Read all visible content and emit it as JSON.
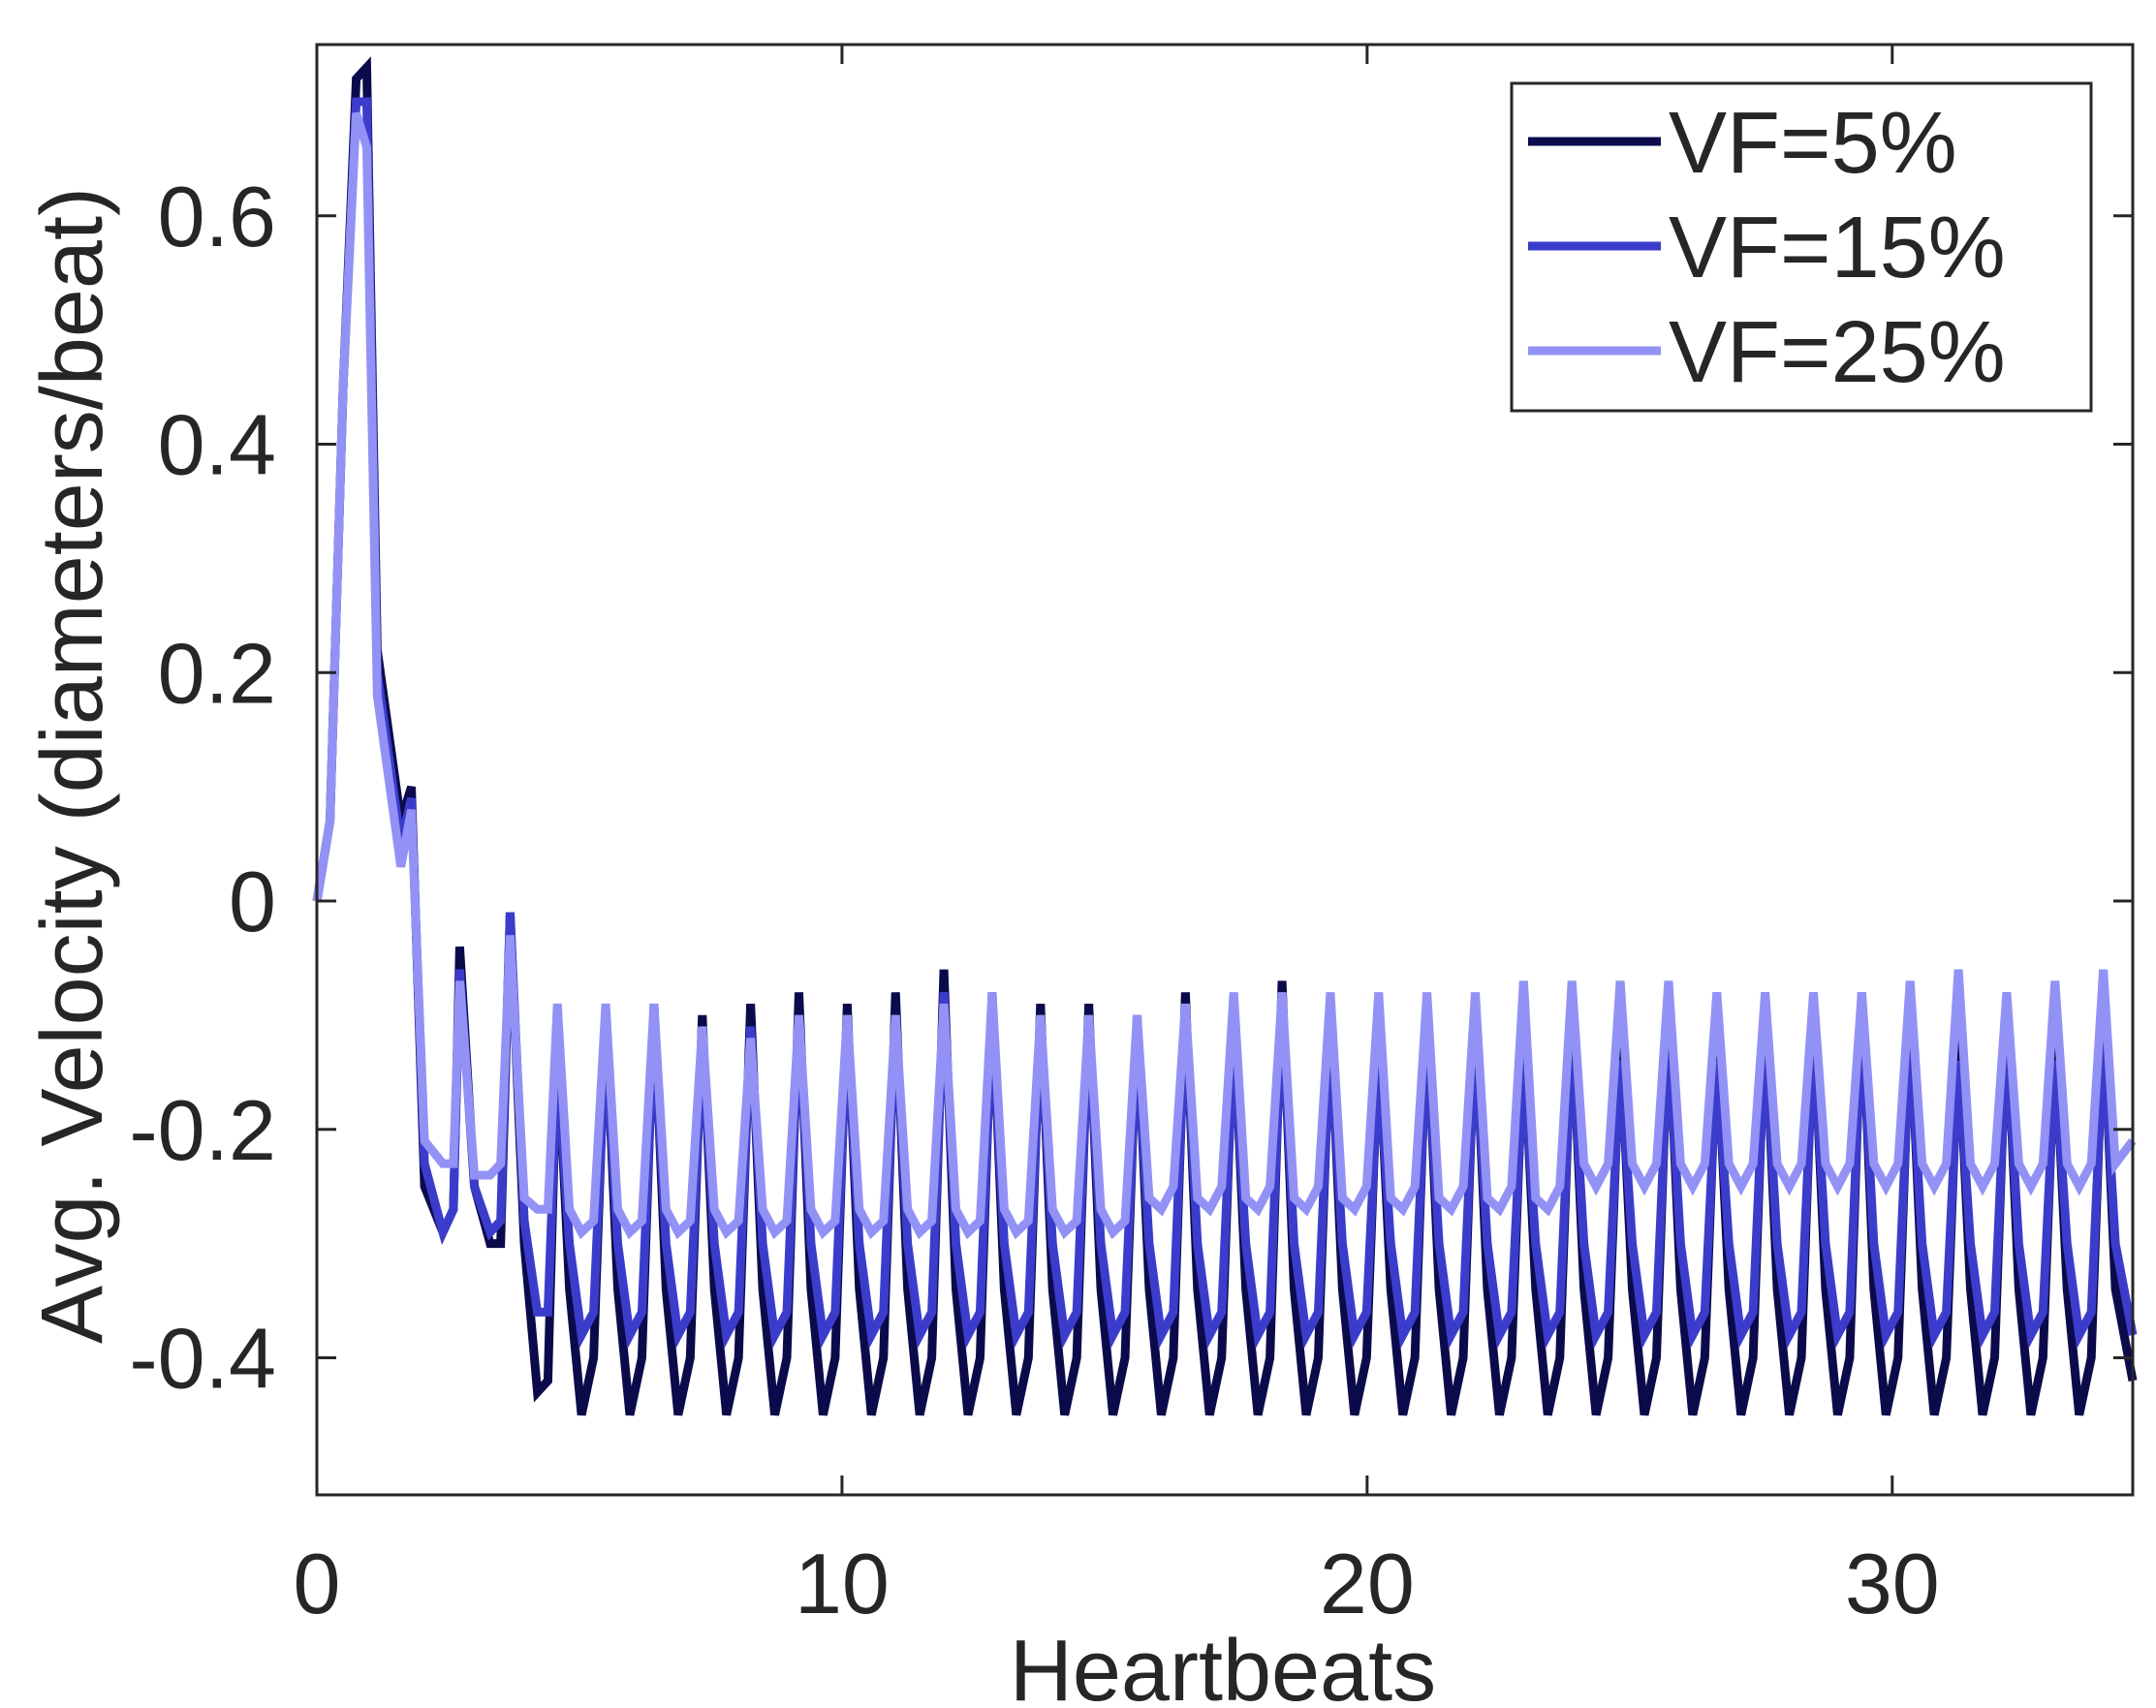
{
  "chart_data": {
    "type": "line",
    "xlabel": "Heartbeats",
    "ylabel": "Avg. Velocity (diameters/beat)",
    "xlim": [
      0,
      34.58
    ],
    "ylim": [
      -0.52,
      0.75
    ],
    "xticks": [
      0,
      10,
      20,
      30
    ],
    "yticks": [
      -0.4,
      -0.2,
      0,
      0.2,
      0.4,
      0.6
    ],
    "legend": "upper right",
    "x": [
      0,
      0.25,
      0.5,
      0.75,
      0.95,
      1.15,
      1.6,
      1.8,
      2.05,
      2.4,
      2.6,
      2.72,
      3.0,
      3.3,
      3.5,
      3.68,
      3.95,
      4.2,
      4.4,
      4.58,
      4.81,
      5.04,
      5.27,
      5.5,
      5.73,
      5.96,
      6.19,
      6.42,
      6.65,
      6.88,
      7.11,
      7.34,
      7.57,
      7.8,
      8.03,
      8.26,
      8.49,
      8.72,
      8.95,
      9.18,
      9.41,
      9.64,
      9.87,
      10.1,
      10.33,
      10.56,
      10.79,
      11.02,
      11.25,
      11.48,
      11.71,
      11.94,
      12.17,
      12.4,
      12.63,
      12.86,
      13.09,
      13.32,
      13.55,
      13.78,
      14.01,
      14.24,
      14.47,
      14.7,
      14.93,
      15.16,
      15.39,
      15.62,
      15.85,
      16.08,
      16.31,
      16.54,
      16.77,
      17,
      17.23,
      17.46,
      17.69,
      17.92,
      18.15,
      18.38,
      18.61,
      18.84,
      19.07,
      19.3,
      19.53,
      19.76,
      19.99,
      20.22,
      20.45,
      20.68,
      20.91,
      21.14,
      21.37,
      21.6,
      21.83,
      22.06,
      22.29,
      22.52,
      22.75,
      22.98,
      23.21,
      23.44,
      23.67,
      23.9,
      24.13,
      24.36,
      24.59,
      24.82,
      25.05,
      25.28,
      25.51,
      25.74,
      25.97,
      26.2,
      26.43,
      26.66,
      26.89,
      27.12,
      27.35,
      27.58,
      27.81,
      28.04,
      28.27,
      28.5,
      28.73,
      28.96,
      29.19,
      29.42,
      29.65,
      29.88,
      30.11,
      30.34,
      30.57,
      30.8,
      31.03,
      31.26,
      31.49,
      31.72,
      31.95,
      32.18,
      32.41,
      32.64,
      32.87,
      33.1,
      33.33,
      33.56,
      33.79,
      34.02,
      34.25,
      34.58
    ],
    "series": [
      {
        "name": "VF=5%",
        "color": "#0b0b4c",
        "values": [
          0,
          0.07,
          0.45,
          0.72,
          0.73,
          0.22,
          0.07,
          0.1,
          -0.25,
          -0.29,
          -0.27,
          -0.04,
          -0.25,
          -0.3,
          -0.3,
          -0.01,
          -0.3,
          -0.43,
          -0.42,
          -0.12,
          -0.34,
          -0.45,
          -0.4,
          -0.1,
          -0.34,
          -0.45,
          -0.4,
          -0.09,
          -0.34,
          -0.45,
          -0.4,
          -0.1,
          -0.34,
          -0.45,
          -0.4,
          -0.09,
          -0.34,
          -0.45,
          -0.4,
          -0.08,
          -0.34,
          -0.45,
          -0.4,
          -0.09,
          -0.34,
          -0.45,
          -0.4,
          -0.08,
          -0.34,
          -0.45,
          -0.4,
          -0.06,
          -0.34,
          -0.45,
          -0.4,
          -0.08,
          -0.34,
          -0.45,
          -0.4,
          -0.09,
          -0.34,
          -0.45,
          -0.4,
          -0.09,
          -0.34,
          -0.45,
          -0.4,
          -0.1,
          -0.34,
          -0.45,
          -0.4,
          -0.08,
          -0.34,
          -0.45,
          -0.4,
          -0.1,
          -0.34,
          -0.45,
          -0.4,
          -0.07,
          -0.34,
          -0.45,
          -0.4,
          -0.1,
          -0.34,
          -0.45,
          -0.4,
          -0.12,
          -0.34,
          -0.45,
          -0.4,
          -0.1,
          -0.34,
          -0.45,
          -0.4,
          -0.1,
          -0.34,
          -0.45,
          -0.4,
          -0.12,
          -0.34,
          -0.45,
          -0.4,
          -0.1,
          -0.34,
          -0.45,
          -0.4,
          -0.12,
          -0.34,
          -0.45,
          -0.4,
          -0.1,
          -0.34,
          -0.45,
          -0.4,
          -0.12,
          -0.34,
          -0.45,
          -0.4,
          -0.1,
          -0.34,
          -0.45,
          -0.4,
          -0.1,
          -0.34,
          -0.45,
          -0.4,
          -0.08,
          -0.34,
          -0.45,
          -0.4,
          -0.1,
          -0.34,
          -0.45,
          -0.4,
          -0.12,
          -0.34,
          -0.45,
          -0.4,
          -0.1,
          -0.34,
          -0.45,
          -0.4,
          -0.12,
          -0.34,
          -0.45,
          -0.4,
          -0.1,
          -0.34,
          -0.42
        ]
      },
      {
        "name": "VF=15%",
        "color": "#3c3ccc",
        "values": [
          0,
          0.07,
          0.45,
          0.7,
          0.7,
          0.2,
          0.05,
          0.09,
          -0.23,
          -0.29,
          -0.27,
          -0.06,
          -0.25,
          -0.29,
          -0.28,
          -0.01,
          -0.28,
          -0.36,
          -0.36,
          -0.14,
          -0.3,
          -0.38,
          -0.36,
          -0.12,
          -0.3,
          -0.38,
          -0.36,
          -0.11,
          -0.3,
          -0.38,
          -0.36,
          -0.12,
          -0.3,
          -0.38,
          -0.36,
          -0.11,
          -0.3,
          -0.38,
          -0.36,
          -0.1,
          -0.3,
          -0.38,
          -0.36,
          -0.11,
          -0.3,
          -0.38,
          -0.36,
          -0.1,
          -0.3,
          -0.38,
          -0.36,
          -0.08,
          -0.3,
          -0.38,
          -0.36,
          -0.1,
          -0.3,
          -0.38,
          -0.36,
          -0.11,
          -0.3,
          -0.38,
          -0.36,
          -0.11,
          -0.3,
          -0.38,
          -0.36,
          -0.12,
          -0.3,
          -0.38,
          -0.36,
          -0.1,
          -0.3,
          -0.38,
          -0.36,
          -0.12,
          -0.3,
          -0.38,
          -0.36,
          -0.09,
          -0.3,
          -0.38,
          -0.36,
          -0.12,
          -0.3,
          -0.38,
          -0.36,
          -0.14,
          -0.3,
          -0.38,
          -0.36,
          -0.12,
          -0.3,
          -0.38,
          -0.36,
          -0.12,
          -0.3,
          -0.38,
          -0.36,
          -0.14,
          -0.3,
          -0.38,
          -0.36,
          -0.12,
          -0.3,
          -0.38,
          -0.36,
          -0.14,
          -0.3,
          -0.38,
          -0.36,
          -0.12,
          -0.3,
          -0.38,
          -0.36,
          -0.14,
          -0.3,
          -0.38,
          -0.36,
          -0.12,
          -0.3,
          -0.38,
          -0.36,
          -0.12,
          -0.3,
          -0.38,
          -0.36,
          -0.1,
          -0.3,
          -0.38,
          -0.36,
          -0.12,
          -0.3,
          -0.38,
          -0.36,
          -0.14,
          -0.3,
          -0.38,
          -0.36,
          -0.12,
          -0.3,
          -0.38,
          -0.36,
          -0.14,
          -0.3,
          -0.38,
          -0.36,
          -0.12,
          -0.3,
          -0.38
        ]
      },
      {
        "name": "VF=25%",
        "color": "#9292f6",
        "values": [
          0,
          0.07,
          0.45,
          0.69,
          0.66,
          0.18,
          0.03,
          0.08,
          -0.21,
          -0.23,
          -0.23,
          -0.07,
          -0.24,
          -0.24,
          -0.23,
          -0.03,
          -0.26,
          -0.27,
          -0.27,
          -0.09,
          -0.27,
          -0.29,
          -0.28,
          -0.09,
          -0.27,
          -0.29,
          -0.28,
          -0.09,
          -0.27,
          -0.29,
          -0.28,
          -0.11,
          -0.27,
          -0.29,
          -0.28,
          -0.12,
          -0.27,
          -0.29,
          -0.28,
          -0.1,
          -0.27,
          -0.29,
          -0.28,
          -0.1,
          -0.27,
          -0.29,
          -0.28,
          -0.1,
          -0.27,
          -0.29,
          -0.28,
          -0.09,
          -0.27,
          -0.29,
          -0.28,
          -0.08,
          -0.27,
          -0.29,
          -0.28,
          -0.1,
          -0.27,
          -0.29,
          -0.28,
          -0.1,
          -0.27,
          -0.29,
          -0.28,
          -0.1,
          -0.26,
          -0.27,
          -0.25,
          -0.09,
          -0.26,
          -0.27,
          -0.25,
          -0.08,
          -0.26,
          -0.27,
          -0.25,
          -0.08,
          -0.26,
          -0.27,
          -0.25,
          -0.08,
          -0.26,
          -0.27,
          -0.25,
          -0.08,
          -0.26,
          -0.27,
          -0.25,
          -0.08,
          -0.26,
          -0.27,
          -0.25,
          -0.08,
          -0.26,
          -0.27,
          -0.25,
          -0.07,
          -0.26,
          -0.27,
          -0.25,
          -0.07,
          -0.23,
          -0.25,
          -0.23,
          -0.07,
          -0.23,
          -0.25,
          -0.23,
          -0.07,
          -0.23,
          -0.25,
          -0.23,
          -0.08,
          -0.23,
          -0.25,
          -0.23,
          -0.08,
          -0.23,
          -0.25,
          -0.23,
          -0.08,
          -0.23,
          -0.25,
          -0.23,
          -0.08,
          -0.23,
          -0.25,
          -0.23,
          -0.07,
          -0.23,
          -0.25,
          -0.23,
          -0.06,
          -0.23,
          -0.25,
          -0.23,
          -0.08,
          -0.23,
          -0.25,
          -0.23,
          -0.07,
          -0.23,
          -0.25,
          -0.23,
          -0.06,
          -0.23,
          -0.21
        ]
      }
    ]
  }
}
